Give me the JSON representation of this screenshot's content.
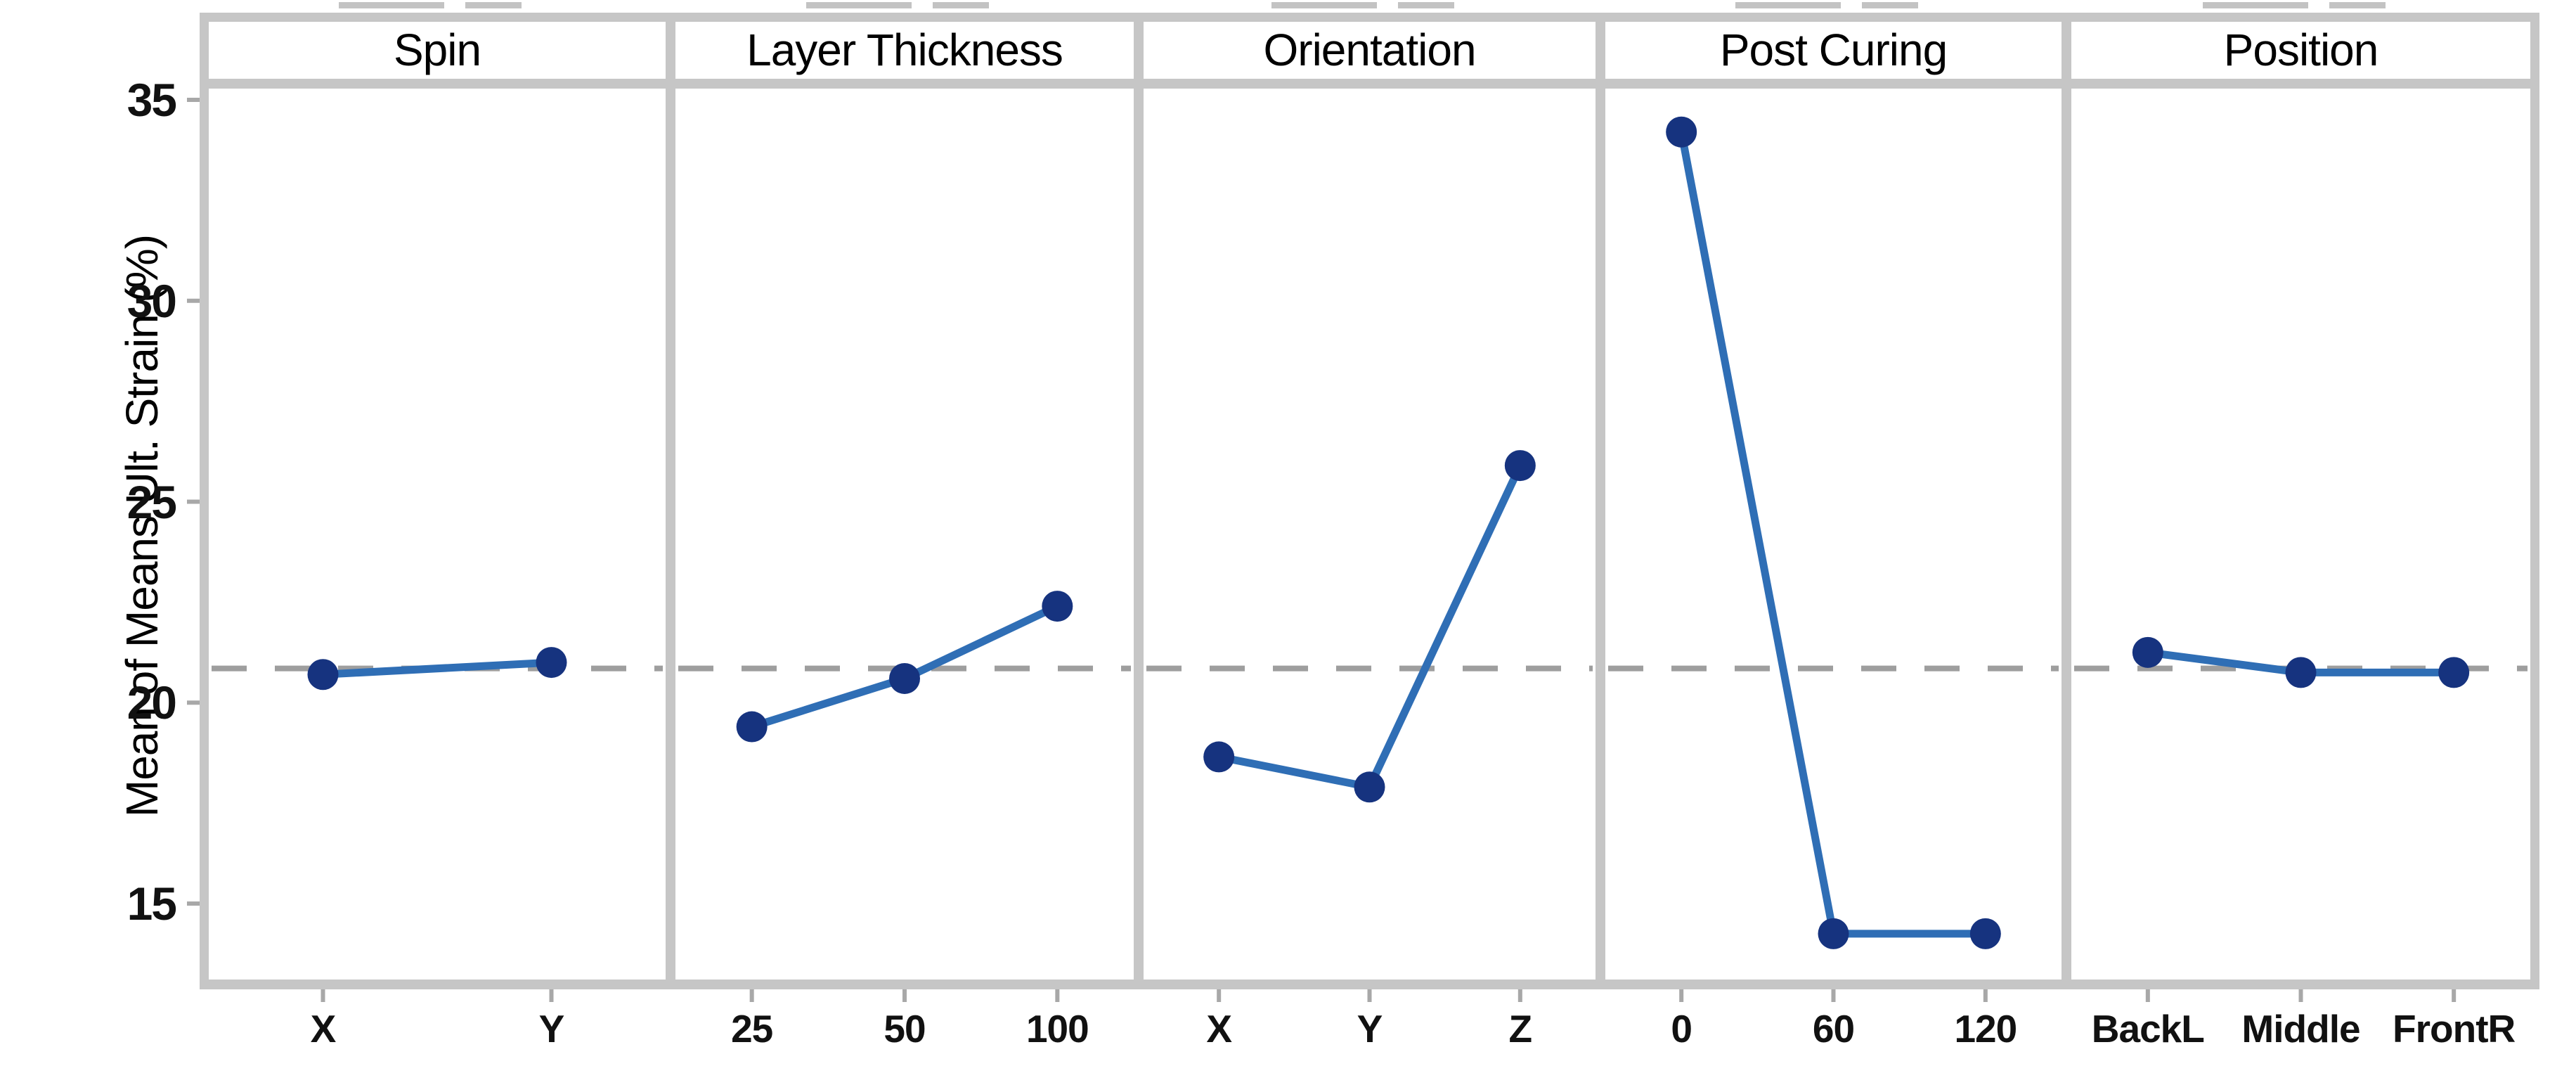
{
  "chart_data": {
    "type": "line",
    "title": "",
    "ylabel": "Mean of Means Ult. Strain (%)",
    "y_ticks": [
      35,
      30,
      25,
      20,
      15
    ],
    "ylim": [
      13.1,
      35.3
    ],
    "grid": false,
    "reference_line": 20.85,
    "panels": [
      {
        "title": "Spin",
        "categories": [
          "X",
          "Y"
        ],
        "values": [
          20.7,
          21.0
        ]
      },
      {
        "title": "Layer Thickness",
        "categories": [
          "25",
          "50",
          "100"
        ],
        "values": [
          19.4,
          20.6,
          22.4
        ]
      },
      {
        "title": "Orientation",
        "categories": [
          "X",
          "Y",
          "Z"
        ],
        "values": [
          18.65,
          17.9,
          25.9
        ]
      },
      {
        "title": "Post Curing",
        "categories": [
          "0",
          "60",
          "120"
        ],
        "values": [
          34.2,
          14.25,
          14.25
        ]
      },
      {
        "title": "Position",
        "categories": [
          "BackL",
          "Middle",
          "FrontR"
        ],
        "values": [
          21.25,
          20.75,
          20.75
        ]
      }
    ],
    "colors": {
      "line": "#2f6eb5",
      "marker": "#16337f",
      "reference": "#9e9e9e",
      "frame": "#c6c6c6",
      "tick": "#a8a8a8",
      "text": "#000000"
    }
  }
}
